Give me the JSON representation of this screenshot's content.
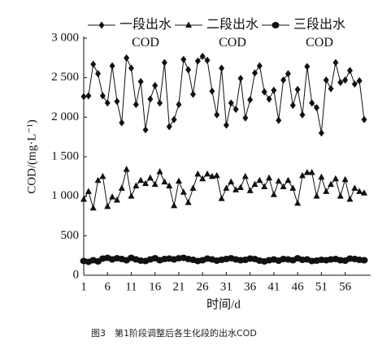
{
  "chart_data": {
    "type": "line",
    "y_label": "COD/(mg·L⁻¹)",
    "x_label": "时间/d",
    "caption": "图3　第1阶段调整后各生化段的出水COD",
    "x": [
      1,
      2,
      3,
      4,
      5,
      6,
      7,
      8,
      9,
      10,
      11,
      12,
      13,
      14,
      15,
      16,
      17,
      18,
      19,
      20,
      21,
      22,
      23,
      24,
      25,
      26,
      27,
      28,
      29,
      30,
      31,
      32,
      33,
      34,
      35,
      36,
      37,
      38,
      39,
      40,
      41,
      42,
      43,
      44,
      45,
      46,
      47,
      48,
      49,
      50,
      51,
      52,
      53,
      54,
      55,
      56,
      57,
      58,
      59,
      60
    ],
    "xlim": [
      1,
      60
    ],
    "xticks": [
      1,
      6,
      11,
      16,
      21,
      26,
      31,
      36,
      41,
      46,
      51,
      56
    ],
    "ylim": [
      0,
      3000
    ],
    "yticks": [
      0,
      500,
      {
        "value": 1000,
        "label": "1 000"
      },
      {
        "value": 1500,
        "label": "1 500"
      },
      {
        "value": 2000,
        "label": "2 000"
      },
      {
        "value": 2500,
        "label": "2 500"
      },
      {
        "value": 3000,
        "label": "3 000"
      }
    ],
    "series": [
      {
        "name": "一段出水 COD",
        "marker": "diamond",
        "color": "#111111",
        "values": [
          2260,
          2270,
          2670,
          2550,
          2270,
          2180,
          2650,
          2200,
          1930,
          2750,
          2620,
          2160,
          2450,
          1840,
          2230,
          2400,
          2180,
          2690,
          1880,
          1970,
          2160,
          2730,
          2600,
          2290,
          2710,
          2770,
          2720,
          2330,
          2030,
          2620,
          1900,
          2180,
          2100,
          2490,
          1990,
          2220,
          2560,
          2650,
          2320,
          2230,
          2340,
          1960,
          2470,
          2550,
          2150,
          2350,
          2030,
          2640,
          2180,
          2120,
          1800,
          2470,
          2360,
          2690,
          2440,
          2470,
          2590,
          2420,
          2460,
          1970
        ]
      },
      {
        "name": "二段出水 COD",
        "marker": "triangle",
        "color": "#111111",
        "values": [
          960,
          1060,
          850,
          1200,
          1250,
          870,
          990,
          950,
          1100,
          1340,
          1000,
          1130,
          1200,
          1160,
          1230,
          1150,
          1310,
          1180,
          1130,
          880,
          1190,
          1050,
          920,
          1100,
          1280,
          1220,
          1280,
          1250,
          1260,
          970,
          1100,
          1180,
          1080,
          1110,
          1250,
          1070,
          1150,
          1200,
          1120,
          1230,
          1020,
          1190,
          1120,
          1200,
          1100,
          910,
          1260,
          1300,
          1300,
          1000,
          1240,
          1060,
          1150,
          1220,
          1000,
          1210,
          960,
          1100,
          1060,
          1040
        ]
      },
      {
        "name": "三段出水 COD",
        "marker": "circle",
        "color": "#111111",
        "values": [
          180,
          170,
          190,
          175,
          210,
          220,
          200,
          215,
          205,
          190,
          220,
          200,
          185,
          180,
          200,
          215,
          190,
          205,
          210,
          200,
          215,
          220,
          205,
          195,
          180,
          190,
          210,
          200,
          185,
          195,
          205,
          215,
          200,
          190,
          195,
          210,
          205,
          185,
          175,
          190,
          200,
          185,
          205,
          200,
          190,
          215,
          195,
          200,
          180,
          185,
          195,
          190,
          200,
          205,
          190,
          185,
          210,
          205,
          195,
          190
        ]
      }
    ]
  }
}
